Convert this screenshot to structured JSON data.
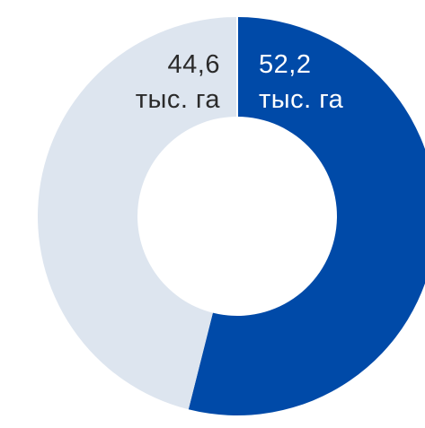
{
  "chart_data": {
    "type": "pie",
    "variant": "donut",
    "title": "",
    "legend": "none",
    "slices": [
      {
        "value": 52.2,
        "value_label": "52,2",
        "unit_label": "тыс. га",
        "color": "#004aa8",
        "label_color": "#ffffff"
      },
      {
        "value": 44.6,
        "value_label": "44,6",
        "unit_label": "тыс. га",
        "color": "#dde5ef",
        "label_color": "#2b2b2b"
      }
    ]
  }
}
